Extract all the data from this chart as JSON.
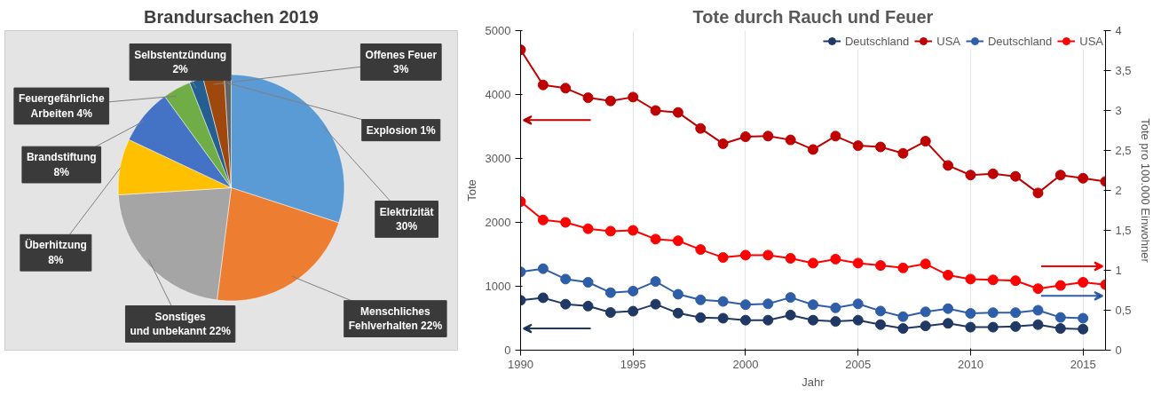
{
  "chart_data": [
    {
      "type": "pie",
      "title": "Brandursachen 2019",
      "categories": [
        "Elektrizität",
        "Menschliches Fehlverhalten",
        "Sonstiges und unbekannt",
        "Überhitzung",
        "Brandstiftung",
        "Feuergefährliche Arbeiten",
        "Selbstentzündung",
        "Offenes Feuer",
        "Explosion"
      ],
      "values": [
        30,
        22,
        22,
        8,
        8,
        4,
        2,
        3,
        1
      ],
      "value_labels": [
        "30%",
        "22%",
        "22%",
        "8%",
        "8%",
        "4%",
        "2%",
        "3%",
        "1%"
      ],
      "colors": [
        "#5b9bd5",
        "#ed7d31",
        "#a5a5a5",
        "#ffc000",
        "#4472c4",
        "#70ad47",
        "#255e91",
        "#9e480e",
        "#636363"
      ]
    },
    {
      "type": "line",
      "title": "Tote durch Rauch und Feuer",
      "xlabel": "Jahr",
      "ylabel": "Tote",
      "y2label": "Tote pro 100.000 Einwohner",
      "xlim": [
        1990,
        2016
      ],
      "xticks": [
        1990,
        1995,
        2000,
        2005,
        2010,
        2015
      ],
      "ylim": [
        0,
        5000
      ],
      "yticks": [
        0,
        1000,
        2000,
        3000,
        4000,
        5000
      ],
      "y2lim": [
        0,
        4
      ],
      "y2ticks": [
        0,
        {
          "value": 0.5,
          "label": "0,5"
        },
        1,
        {
          "value": 1.5,
          "label": "1,5"
        },
        2,
        {
          "value": 2.5,
          "label": "2,5"
        },
        3,
        {
          "value": 3.5,
          "label": "3,5"
        },
        4
      ],
      "grid": "x",
      "legend": "top right",
      "marker": "circle",
      "x": [
        1990,
        1991,
        1992,
        1993,
        1994,
        1995,
        1996,
        1997,
        1998,
        1999,
        2000,
        2001,
        2002,
        2003,
        2004,
        2005,
        2006,
        2007,
        2008,
        2009,
        2010,
        2011,
        2012,
        2013,
        2014,
        2015,
        2016
      ],
      "series": [
        {
          "name": "Deutschland",
          "color": "#1f3864",
          "values": [
            780,
            820,
            720,
            690,
            590,
            610,
            720,
            580,
            510,
            500,
            470,
            470,
            550,
            470,
            450,
            470,
            400,
            340,
            380,
            420,
            360,
            360,
            370,
            400,
            340,
            330,
            null
          ]
        },
        {
          "name": "USA",
          "color": "#c00000",
          "values": [
            4700,
            4150,
            4100,
            3950,
            3900,
            3960,
            3750,
            3720,
            3470,
            3230,
            3340,
            3350,
            3290,
            3140,
            3350,
            3200,
            3180,
            3080,
            3270,
            2890,
            2740,
            2760,
            2720,
            2460,
            2740,
            2690,
            2640
          ]
        },
        {
          "name": "Deutschland",
          "color": "#2f5ea8",
          "axis": "y2",
          "values": [
            0.98,
            1.02,
            0.89,
            0.85,
            0.72,
            0.74,
            0.86,
            0.7,
            0.63,
            0.61,
            0.57,
            0.58,
            0.66,
            0.57,
            0.53,
            0.58,
            0.49,
            0.42,
            0.48,
            0.52,
            0.46,
            0.47,
            0.47,
            0.5,
            0.41,
            0.4,
            null
          ]
        },
        {
          "name": "USA",
          "color": "#ff0000",
          "axis": "y2",
          "values": [
            1.86,
            1.63,
            1.6,
            1.52,
            1.49,
            1.5,
            1.39,
            1.37,
            1.26,
            1.16,
            1.19,
            1.19,
            1.15,
            1.09,
            1.14,
            1.09,
            1.06,
            1.03,
            1.08,
            0.94,
            0.89,
            0.88,
            0.87,
            0.77,
            0.81,
            0.85,
            0.82
          ]
        }
      ]
    }
  ]
}
